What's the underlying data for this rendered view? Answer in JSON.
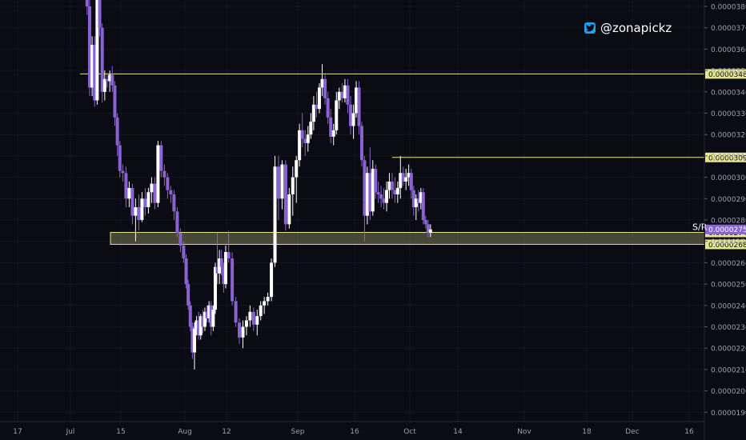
{
  "watermark": {
    "handle": "@zonapickz",
    "icon": "twitter-bird-icon"
  },
  "chart_data": {
    "type": "candlestick",
    "title": "",
    "xlabel": "",
    "ylabel": "",
    "ylim": [
      1.83e-05,
      3.818e-05
    ],
    "y_ticks": [
      "0.00003800",
      "0.00003700",
      "0.00003600",
      "0.00003500",
      "0.00003400",
      "0.00003300",
      "0.00003200",
      "0.00003100",
      "0.00003000",
      "0.00002900",
      "0.00002800",
      "0.00002700",
      "0.00002600",
      "0.00002500",
      "0.00002400",
      "0.00002300",
      "0.00002200",
      "0.00002100",
      "0.00002000",
      "0.00001900"
    ],
    "x_ticks": [
      "17",
      "Jul",
      "15",
      "Aug",
      "12",
      "Sep",
      "16",
      "Oct",
      "14",
      "Nov",
      "18",
      "Dec",
      "16"
    ],
    "x_tick_positions": [
      0,
      1,
      2,
      3,
      4,
      5,
      6,
      7,
      8,
      9,
      10,
      11,
      12
    ],
    "levels": [
      {
        "value": 3.484e-05,
        "label": "0.00003484"
      },
      {
        "value": 3.093e-05,
        "label": "0.00003093"
      },
      {
        "value": 2.742e-05,
        "label": "0.00002742"
      },
      {
        "value": 2.686e-05,
        "label": "0.00002686"
      }
    ],
    "zone": {
      "top": 2.742e-05,
      "bottom": 2.686e-05,
      "label": "S/R"
    },
    "last_price": {
      "value": 2.756e-05,
      "label": "0.00002756"
    },
    "colors": {
      "up": "#ffffff",
      "down": "#8a63d2",
      "level": "#e6e68c",
      "last": "#8a63d2",
      "grid": "#141424",
      "text": "#9aa0b0"
    },
    "candles": [
      {
        "t": 1.33,
        "o": 3.85,
        "h": 3.9,
        "l": 3.76,
        "c": 3.8
      },
      {
        "t": 1.38,
        "o": 3.8,
        "h": 3.83,
        "l": 3.38,
        "c": 3.42
      },
      {
        "t": 1.43,
        "o": 3.42,
        "h": 3.66,
        "l": 3.38,
        "c": 3.62
      },
      {
        "t": 1.48,
        "o": 3.62,
        "h": 3.66,
        "l": 3.33,
        "c": 3.36
      },
      {
        "t": 1.53,
        "o": 3.36,
        "h": 3.88,
        "l": 3.34,
        "c": 3.85
      },
      {
        "t": 1.58,
        "o": 3.85,
        "h": 3.9,
        "l": 3.66,
        "c": 3.7
      },
      {
        "t": 1.63,
        "o": 3.7,
        "h": 3.72,
        "l": 3.35,
        "c": 3.4
      },
      {
        "t": 1.68,
        "o": 3.4,
        "h": 3.5,
        "l": 3.36,
        "c": 3.46
      },
      {
        "t": 1.73,
        "o": 3.46,
        "h": 3.49,
        "l": 3.42,
        "c": 3.45
      },
      {
        "t": 1.78,
        "o": 3.45,
        "h": 3.5,
        "l": 3.4,
        "c": 3.48
      },
      {
        "t": 1.83,
        "o": 3.48,
        "h": 3.52,
        "l": 3.4,
        "c": 3.43
      },
      {
        "t": 1.88,
        "o": 3.43,
        "h": 3.45,
        "l": 3.24,
        "c": 3.28
      },
      {
        "t": 1.93,
        "o": 3.28,
        "h": 3.3,
        "l": 3.1,
        "c": 3.15
      },
      {
        "t": 1.98,
        "o": 3.15,
        "h": 3.17,
        "l": 3.0,
        "c": 3.03
      },
      {
        "t": 2.03,
        "o": 3.03,
        "h": 3.06,
        "l": 2.98,
        "c": 3.02
      },
      {
        "t": 2.08,
        "o": 3.02,
        "h": 3.05,
        "l": 2.86,
        "c": 2.9
      },
      {
        "t": 2.13,
        "o": 2.9,
        "h": 2.98,
        "l": 2.86,
        "c": 2.95
      },
      {
        "t": 2.18,
        "o": 2.95,
        "h": 2.97,
        "l": 2.78,
        "c": 2.82
      },
      {
        "t": 2.23,
        "o": 2.82,
        "h": 2.9,
        "l": 2.7,
        "c": 2.86
      },
      {
        "t": 2.28,
        "o": 2.86,
        "h": 2.92,
        "l": 2.75,
        "c": 2.8
      },
      {
        "t": 2.33,
        "o": 2.8,
        "h": 2.93,
        "l": 2.79,
        "c": 2.9
      },
      {
        "t": 2.38,
        "o": 2.9,
        "h": 2.95,
        "l": 2.82,
        "c": 2.86
      },
      {
        "t": 2.43,
        "o": 2.86,
        "h": 2.95,
        "l": 2.83,
        "c": 2.93
      },
      {
        "t": 2.48,
        "o": 2.93,
        "h": 3.0,
        "l": 2.88,
        "c": 2.97
      },
      {
        "t": 2.53,
        "o": 2.97,
        "h": 3.0,
        "l": 2.85,
        "c": 2.88
      },
      {
        "t": 2.58,
        "o": 2.88,
        "h": 3.17,
        "l": 2.86,
        "c": 3.15
      },
      {
        "t": 2.63,
        "o": 3.15,
        "h": 3.17,
        "l": 3.0,
        "c": 3.03
      },
      {
        "t": 2.68,
        "o": 3.03,
        "h": 3.06,
        "l": 2.96,
        "c": 3.0
      },
      {
        "t": 2.73,
        "o": 3.0,
        "h": 3.02,
        "l": 2.9,
        "c": 2.94
      },
      {
        "t": 2.78,
        "o": 2.94,
        "h": 2.96,
        "l": 2.88,
        "c": 2.92
      },
      {
        "t": 2.83,
        "o": 2.92,
        "h": 2.94,
        "l": 2.8,
        "c": 2.84
      },
      {
        "t": 2.88,
        "o": 2.84,
        "h": 2.86,
        "l": 2.72,
        "c": 2.74
      },
      {
        "t": 2.93,
        "o": 2.74,
        "h": 2.76,
        "l": 2.65,
        "c": 2.68
      },
      {
        "t": 2.98,
        "o": 2.68,
        "h": 2.7,
        "l": 2.6,
        "c": 2.62
      },
      {
        "t": 3.03,
        "o": 2.62,
        "h": 2.64,
        "l": 2.48,
        "c": 2.5
      },
      {
        "t": 3.08,
        "o": 2.5,
        "h": 2.52,
        "l": 2.38,
        "c": 2.4
      },
      {
        "t": 3.13,
        "o": 2.4,
        "h": 2.42,
        "l": 2.28,
        "c": 2.3
      },
      {
        "t": 3.18,
        "o": 2.3,
        "h": 2.32,
        "l": 2.15,
        "c": 2.18
      },
      {
        "t": 3.23,
        "o": 2.18,
        "h": 2.32,
        "l": 2.1,
        "c": 2.29
      },
      {
        "t": 3.28,
        "o": 2.29,
        "h": 2.35,
        "l": 2.26,
        "c": 2.33
      },
      {
        "t": 3.33,
        "o": 2.33,
        "h": 2.37,
        "l": 2.24,
        "c": 2.26
      },
      {
        "t": 3.38,
        "o": 2.26,
        "h": 2.36,
        "l": 2.24,
        "c": 2.35
      },
      {
        "t": 3.43,
        "o": 2.35,
        "h": 2.38,
        "l": 2.27,
        "c": 2.3
      },
      {
        "t": 3.48,
        "o": 2.3,
        "h": 2.39,
        "l": 2.28,
        "c": 2.37
      },
      {
        "t": 3.53,
        "o": 2.37,
        "h": 2.4,
        "l": 2.32,
        "c": 2.34
      },
      {
        "t": 3.58,
        "o": 2.34,
        "h": 2.42,
        "l": 2.32,
        "c": 2.4
      },
      {
        "t": 3.63,
        "o": 2.4,
        "h": 2.42,
        "l": 2.26,
        "c": 2.3
      },
      {
        "t": 3.68,
        "o": 2.3,
        "h": 2.4,
        "l": 2.28,
        "c": 2.38
      },
      {
        "t": 3.73,
        "o": 2.38,
        "h": 2.6,
        "l": 2.36,
        "c": 2.58
      },
      {
        "t": 3.78,
        "o": 2.58,
        "h": 2.74,
        "l": 2.5,
        "c": 2.55
      },
      {
        "t": 3.83,
        "o": 2.55,
        "h": 2.66,
        "l": 2.5,
        "c": 2.62
      },
      {
        "t": 3.88,
        "o": 2.62,
        "h": 2.66,
        "l": 2.54,
        "c": 2.58
      },
      {
        "t": 3.93,
        "o": 2.58,
        "h": 2.6,
        "l": 2.46,
        "c": 2.5
      },
      {
        "t": 3.98,
        "o": 2.5,
        "h": 2.68,
        "l": 2.48,
        "c": 2.65
      },
      {
        "t": 4.03,
        "o": 2.65,
        "h": 2.75,
        "l": 2.6,
        "c": 2.62
      },
      {
        "t": 4.08,
        "o": 2.62,
        "h": 2.65,
        "l": 2.4,
        "c": 2.42
      },
      {
        "t": 4.13,
        "o": 2.42,
        "h": 2.44,
        "l": 2.3,
        "c": 2.32
      },
      {
        "t": 4.18,
        "o": 2.32,
        "h": 2.34,
        "l": 2.22,
        "c": 2.25
      },
      {
        "t": 4.23,
        "o": 2.25,
        "h": 2.33,
        "l": 2.2,
        "c": 2.3
      },
      {
        "t": 4.28,
        "o": 2.3,
        "h": 2.35,
        "l": 2.26,
        "c": 2.33
      },
      {
        "t": 4.33,
        "o": 2.33,
        "h": 2.4,
        "l": 2.3,
        "c": 2.37
      },
      {
        "t": 4.38,
        "o": 2.37,
        "h": 2.39,
        "l": 2.28,
        "c": 2.31
      },
      {
        "t": 4.43,
        "o": 2.31,
        "h": 2.38,
        "l": 2.26,
        "c": 2.35
      },
      {
        "t": 4.48,
        "o": 2.35,
        "h": 2.42,
        "l": 2.33,
        "c": 2.4
      },
      {
        "t": 4.53,
        "o": 2.4,
        "h": 2.44,
        "l": 2.36,
        "c": 2.42
      },
      {
        "t": 4.58,
        "o": 2.42,
        "h": 2.46,
        "l": 2.4,
        "c": 2.44
      },
      {
        "t": 4.63,
        "o": 2.44,
        "h": 2.62,
        "l": 2.42,
        "c": 2.6
      },
      {
        "t": 4.68,
        "o": 2.6,
        "h": 3.1,
        "l": 2.58,
        "c": 3.05
      },
      {
        "t": 4.73,
        "o": 3.05,
        "h": 3.1,
        "l": 2.8,
        "c": 2.9
      },
      {
        "t": 4.78,
        "o": 2.9,
        "h": 3.08,
        "l": 2.85,
        "c": 3.06
      },
      {
        "t": 4.83,
        "o": 3.06,
        "h": 3.08,
        "l": 2.75,
        "c": 2.78
      },
      {
        "t": 4.88,
        "o": 2.78,
        "h": 2.95,
        "l": 2.76,
        "c": 2.92
      },
      {
        "t": 4.93,
        "o": 2.92,
        "h": 3.05,
        "l": 2.82,
        "c": 3.0
      },
      {
        "t": 4.98,
        "o": 3.0,
        "h": 3.1,
        "l": 2.88,
        "c": 3.08
      },
      {
        "t": 5.03,
        "o": 3.08,
        "h": 3.25,
        "l": 3.05,
        "c": 3.22
      },
      {
        "t": 5.08,
        "o": 3.22,
        "h": 3.3,
        "l": 3.14,
        "c": 3.18
      },
      {
        "t": 5.13,
        "o": 3.18,
        "h": 3.22,
        "l": 3.1,
        "c": 3.16
      },
      {
        "t": 5.18,
        "o": 3.16,
        "h": 3.24,
        "l": 3.12,
        "c": 3.2
      },
      {
        "t": 5.23,
        "o": 3.2,
        "h": 3.3,
        "l": 3.18,
        "c": 3.26
      },
      {
        "t": 5.28,
        "o": 3.26,
        "h": 3.38,
        "l": 3.22,
        "c": 3.34
      },
      {
        "t": 5.33,
        "o": 3.34,
        "h": 3.4,
        "l": 3.28,
        "c": 3.32
      },
      {
        "t": 5.38,
        "o": 3.32,
        "h": 3.44,
        "l": 3.3,
        "c": 3.42
      },
      {
        "t": 5.43,
        "o": 3.42,
        "h": 3.53,
        "l": 3.38,
        "c": 3.46
      },
      {
        "t": 5.48,
        "o": 3.46,
        "h": 3.48,
        "l": 3.34,
        "c": 3.37
      },
      {
        "t": 5.53,
        "o": 3.37,
        "h": 3.4,
        "l": 3.25,
        "c": 3.28
      },
      {
        "t": 5.58,
        "o": 3.28,
        "h": 3.32,
        "l": 3.16,
        "c": 3.19
      },
      {
        "t": 5.63,
        "o": 3.19,
        "h": 3.25,
        "l": 3.15,
        "c": 3.22
      },
      {
        "t": 5.68,
        "o": 3.22,
        "h": 3.4,
        "l": 3.2,
        "c": 3.36
      },
      {
        "t": 5.73,
        "o": 3.36,
        "h": 3.42,
        "l": 3.32,
        "c": 3.4
      },
      {
        "t": 5.78,
        "o": 3.4,
        "h": 3.44,
        "l": 3.35,
        "c": 3.37
      },
      {
        "t": 5.83,
        "o": 3.37,
        "h": 3.46,
        "l": 3.35,
        "c": 3.43
      },
      {
        "t": 5.88,
        "o": 3.43,
        "h": 3.46,
        "l": 3.3,
        "c": 3.34
      },
      {
        "t": 5.93,
        "o": 3.34,
        "h": 3.38,
        "l": 3.2,
        "c": 3.24
      },
      {
        "t": 5.98,
        "o": 3.24,
        "h": 3.34,
        "l": 3.18,
        "c": 3.3
      },
      {
        "t": 6.03,
        "o": 3.3,
        "h": 3.45,
        "l": 3.28,
        "c": 3.42
      },
      {
        "t": 6.08,
        "o": 3.42,
        "h": 3.45,
        "l": 3.2,
        "c": 3.24
      },
      {
        "t": 6.13,
        "o": 3.24,
        "h": 3.26,
        "l": 3.05,
        "c": 3.08
      },
      {
        "t": 6.18,
        "o": 3.08,
        "h": 3.1,
        "l": 2.7,
        "c": 2.82
      },
      {
        "t": 6.23,
        "o": 2.82,
        "h": 3.05,
        "l": 2.78,
        "c": 3.02
      },
      {
        "t": 6.28,
        "o": 3.02,
        "h": 3.14,
        "l": 2.8,
        "c": 2.84
      },
      {
        "t": 6.33,
        "o": 2.84,
        "h": 3.08,
        "l": 2.82,
        "c": 3.04
      },
      {
        "t": 6.38,
        "o": 3.04,
        "h": 3.06,
        "l": 2.9,
        "c": 2.93
      },
      {
        "t": 6.43,
        "o": 2.93,
        "h": 2.98,
        "l": 2.88,
        "c": 2.92
      },
      {
        "t": 6.48,
        "o": 2.92,
        "h": 2.96,
        "l": 2.86,
        "c": 2.9
      },
      {
        "t": 6.53,
        "o": 2.9,
        "h": 2.95,
        "l": 2.85,
        "c": 2.88
      },
      {
        "t": 6.58,
        "o": 2.88,
        "h": 2.98,
        "l": 2.84,
        "c": 2.94
      },
      {
        "t": 6.63,
        "o": 2.94,
        "h": 3.02,
        "l": 2.9,
        "c": 2.98
      },
      {
        "t": 6.68,
        "o": 2.98,
        "h": 3.02,
        "l": 2.9,
        "c": 2.94
      },
      {
        "t": 6.73,
        "o": 2.94,
        "h": 3.0,
        "l": 2.88,
        "c": 2.92
      },
      {
        "t": 6.78,
        "o": 2.92,
        "h": 2.98,
        "l": 2.88,
        "c": 2.95
      },
      {
        "t": 6.83,
        "o": 2.95,
        "h": 3.1,
        "l": 2.9,
        "c": 3.02
      },
      {
        "t": 6.88,
        "o": 3.02,
        "h": 3.05,
        "l": 2.96,
        "c": 2.98
      },
      {
        "t": 6.93,
        "o": 2.98,
        "h": 3.04,
        "l": 2.94,
        "c": 3.0
      },
      {
        "t": 6.98,
        "o": 3.0,
        "h": 3.06,
        "l": 2.96,
        "c": 3.02
      },
      {
        "t": 7.03,
        "o": 3.02,
        "h": 3.04,
        "l": 2.9,
        "c": 2.94
      },
      {
        "t": 7.08,
        "o": 2.94,
        "h": 2.96,
        "l": 2.82,
        "c": 2.86
      },
      {
        "t": 7.13,
        "o": 2.86,
        "h": 2.92,
        "l": 2.8,
        "c": 2.9
      },
      {
        "t": 7.18,
        "o": 2.9,
        "h": 2.94,
        "l": 2.84,
        "c": 2.88
      },
      {
        "t": 7.23,
        "o": 2.88,
        "h": 2.95,
        "l": 2.85,
        "c": 2.93
      },
      {
        "t": 7.28,
        "o": 2.93,
        "h": 2.95,
        "l": 2.78,
        "c": 2.8
      },
      {
        "t": 7.33,
        "o": 2.8,
        "h": 2.82,
        "l": 2.76,
        "c": 2.78
      },
      {
        "t": 7.38,
        "o": 2.78,
        "h": 2.8,
        "l": 2.72,
        "c": 2.74
      },
      {
        "t": 7.43,
        "o": 2.74,
        "h": 2.78,
        "l": 2.72,
        "c": 2.756
      }
    ]
  }
}
